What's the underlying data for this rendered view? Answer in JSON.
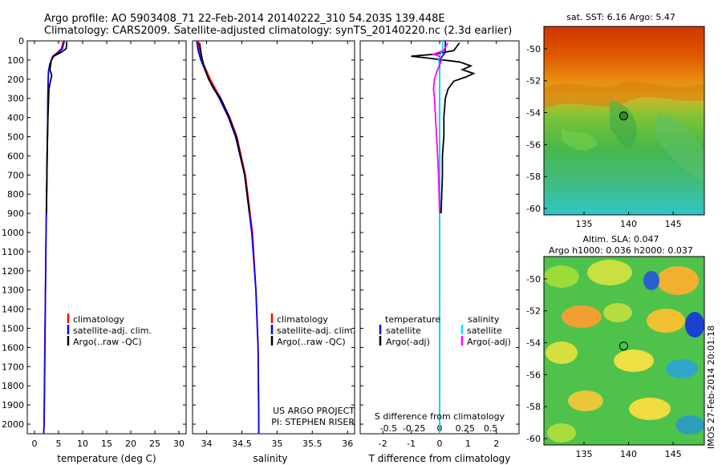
{
  "title": {
    "line1": "Argo profile: AO 5903408_71 22-Feb-2014 20140222_310 54.203S 139.448E",
    "line2": "Climatology: CARS2009. Satellite-adjusted climatology: synTS_20140220.nc (2.3d earlier)"
  },
  "side_label": "IMOS 27-Feb-2014 20:01:18",
  "colors": {
    "climatology": "#ff0000",
    "satellite": "#0000ff",
    "argo": "#000000",
    "sal_satellite": "#00e5ff",
    "sal_argo": "#ff00ff"
  },
  "chart_data": [
    {
      "id": "temperature",
      "type": "line",
      "xlabel": "temperature (deg C)",
      "ylabel": "depth",
      "xlim": [
        -1.5,
        31.5
      ],
      "ylim": [
        2050,
        0
      ],
      "xticks": [
        0,
        5,
        10,
        15,
        20,
        25,
        30
      ],
      "yticks": [
        0,
        100,
        200,
        300,
        400,
        500,
        600,
        700,
        800,
        900,
        1000,
        1100,
        1200,
        1300,
        1400,
        1500,
        1600,
        1700,
        1800,
        1900,
        2000
      ],
      "legend": [
        "climatology",
        "satellite-adj. clim.",
        "Argo(..raw -QC)"
      ],
      "series": [
        {
          "name": "climatology",
          "color": "#ff0000",
          "depth": [
            0,
            40,
            60,
            80,
            120,
            160,
            250,
            500,
            1000,
            1500,
            2000,
            2050
          ],
          "values": [
            6.0,
            5.6,
            4.8,
            3.8,
            3.2,
            2.9,
            2.8,
            2.7,
            2.4,
            2.2,
            2.0,
            1.9
          ]
        },
        {
          "name": "satellite-adj. clim.",
          "color": "#0000ff",
          "depth": [
            0,
            40,
            60,
            80,
            120,
            160,
            250,
            500,
            1000,
            1500,
            2000,
            2050
          ],
          "values": [
            6.2,
            5.8,
            5.0,
            3.9,
            3.2,
            2.9,
            2.8,
            2.7,
            2.4,
            2.2,
            2.0,
            1.9
          ]
        },
        {
          "name": "Argo(..raw -QC)",
          "color": "#000000",
          "depth": [
            5,
            40,
            60,
            80,
            100,
            150,
            180,
            200,
            250,
            400,
            600,
            900
          ],
          "values": [
            6.7,
            6.6,
            5.5,
            4.0,
            3.5,
            3.2,
            3.6,
            3.4,
            3.0,
            2.8,
            2.6,
            2.5
          ]
        }
      ]
    },
    {
      "id": "salinity",
      "type": "line",
      "xlabel": "salinity",
      "xlim": [
        33.8,
        36.1
      ],
      "ylim": [
        2050,
        0
      ],
      "xticks": [
        34,
        34.5,
        35,
        35.5,
        36
      ],
      "yticks": [
        0,
        100,
        200,
        300,
        400,
        500,
        600,
        700,
        800,
        900,
        1000,
        1100,
        1200,
        1300,
        1400,
        1500,
        1600,
        1700,
        1800,
        1900,
        2000
      ],
      "legend": [
        "climatology",
        "satellite-adj. clim.",
        "Argo(..raw -QC)"
      ],
      "annotations": [
        "US ARGO PROJECT",
        "PI: STEPHEN RISER"
      ],
      "series": [
        {
          "name": "climatology",
          "color": "#ff0000",
          "depth": [
            0,
            50,
            100,
            200,
            300,
            400,
            500,
            700,
            1000,
            1300,
            1600,
            2000,
            2050
          ],
          "values": [
            33.88,
            33.9,
            33.93,
            34.05,
            34.2,
            34.33,
            34.43,
            34.55,
            34.65,
            34.7,
            34.73,
            34.74,
            34.74
          ]
        },
        {
          "name": "satellite-adj. clim.",
          "color": "#0000ff",
          "depth": [
            0,
            50,
            100,
            200,
            300,
            400,
            500,
            700,
            1000,
            1300,
            1600,
            2000,
            2050
          ],
          "values": [
            33.86,
            33.88,
            33.92,
            34.03,
            34.18,
            34.31,
            34.41,
            34.54,
            34.64,
            34.7,
            34.73,
            34.74,
            34.74
          ]
        },
        {
          "name": "Argo(..raw -QC)",
          "color": "#000000",
          "depth": [
            10,
            60,
            100,
            150,
            200,
            250,
            300,
            400,
            500,
            700,
            900
          ],
          "values": [
            33.9,
            33.92,
            33.94,
            33.98,
            34.03,
            34.1,
            34.2,
            34.32,
            34.42,
            34.54,
            34.61
          ]
        }
      ]
    },
    {
      "id": "difference",
      "type": "line",
      "xlabel": "T difference from climatology",
      "xlabel_top": "S difference from climatology",
      "xlim": [
        -2.8,
        2.8
      ],
      "ylim": [
        2050,
        0
      ],
      "xticks": [
        -2,
        -1,
        0,
        1,
        2
      ],
      "xticks_s": [
        -0.5,
        -0.25,
        0,
        0.25,
        0.5
      ],
      "yticks": [
        0,
        100,
        200,
        300,
        400,
        500,
        600,
        700,
        800,
        900,
        1000,
        1100,
        1200,
        1300,
        1400,
        1500,
        1600,
        1700,
        1800,
        1900,
        2000
      ],
      "legend_headers": [
        "temperature",
        "salinity"
      ],
      "legend": [
        "satellite",
        "Argo(-adj)",
        "satellite",
        "Argo(-adj)"
      ],
      "series": [
        {
          "name": "T satellite",
          "color": "#0000ff",
          "depth": [
            0,
            40,
            60,
            80,
            100,
            150,
            200,
            300,
            500,
            1000,
            2000,
            2050
          ],
          "values": [
            0.2,
            0.2,
            0.2,
            0.1,
            0.0,
            0.0,
            0.0,
            0.0,
            0.0,
            0.0,
            0.0,
            0.0
          ]
        },
        {
          "name": "T Argo(-adj)",
          "color": "#000000",
          "depth": [
            10,
            50,
            70,
            80,
            90,
            110,
            130,
            150,
            170,
            190,
            210,
            250,
            300,
            400,
            500,
            600,
            700,
            900
          ],
          "values": [
            0.7,
            0.5,
            -0.2,
            -1.0,
            -0.4,
            0.7,
            1.1,
            0.8,
            1.2,
            0.9,
            0.5,
            0.3,
            0.2,
            0.15,
            0.15,
            0.1,
            0.1,
            0.05
          ]
        },
        {
          "name": "S satellite",
          "color": "#00e5ff",
          "depth": [
            0,
            40,
            60,
            80,
            100,
            150,
            200,
            300,
            500,
            1000,
            2000,
            2050
          ],
          "values": [
            0.03,
            0.03,
            0.02,
            0.0,
            -0.01,
            0.0,
            0.0,
            0.0,
            0.0,
            0.0,
            0.0,
            0.0
          ]
        },
        {
          "name": "S Argo(-adj)",
          "color": "#ff00ff",
          "depth": [
            10,
            50,
            70,
            80,
            100,
            150,
            200,
            250,
            300,
            400,
            500,
            600,
            700,
            900
          ],
          "values": [
            0.08,
            0.04,
            -0.06,
            0.0,
            0.02,
            -0.02,
            -0.05,
            -0.06,
            -0.05,
            -0.04,
            -0.03,
            -0.02,
            -0.01,
            0.0
          ]
        }
      ]
    },
    {
      "id": "sst_map",
      "type": "heatmap",
      "title": "sat. SST: 6.16 Argo: 5.47",
      "xlim": [
        130.5,
        148.5
      ],
      "ylim": [
        -60.4,
        -48.6
      ],
      "xticks": [
        135,
        140,
        145
      ],
      "yticks": [
        -50,
        -52,
        -54,
        -56,
        -58,
        -60
      ],
      "marker": {
        "lon": 139.448,
        "lat": -54.203
      }
    },
    {
      "id": "sla_map",
      "type": "heatmap",
      "title": "Altim. SLA: 0.047",
      "subtitle": "Argo h1000: 0.036 h2000: 0.037",
      "xlim": [
        130.5,
        148.5
      ],
      "ylim": [
        -60.4,
        -48.6
      ],
      "xticks": [
        135,
        140,
        145
      ],
      "yticks": [
        -50,
        -52,
        -54,
        -56,
        -58,
        -60
      ],
      "marker": {
        "lon": 139.448,
        "lat": -54.203
      }
    }
  ]
}
